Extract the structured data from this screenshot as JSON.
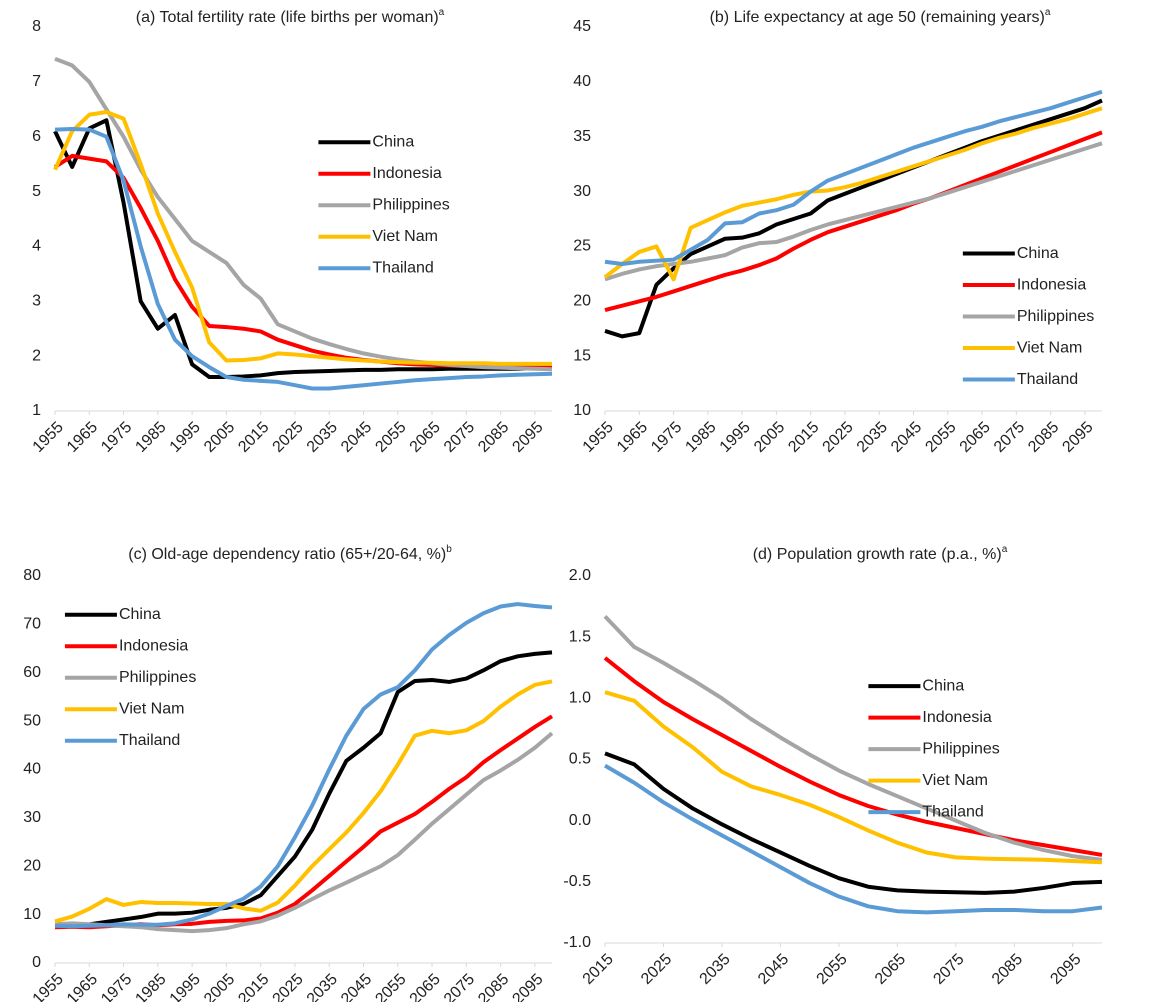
{
  "chart_data": [
    {
      "type": "line",
      "title": "(a) Total fertility rate (life births per woman)",
      "title_sup": "a",
      "x": [
        1955,
        1960,
        1965,
        1970,
        1975,
        1980,
        1985,
        1990,
        1995,
        2000,
        2005,
        2010,
        2015,
        2020,
        2025,
        2030,
        2035,
        2040,
        2045,
        2050,
        2055,
        2060,
        2065,
        2070,
        2075,
        2080,
        2085,
        2090,
        2095,
        2100
      ],
      "xlim": [
        1955,
        2100
      ],
      "xticks": [
        1955,
        1965,
        1975,
        1985,
        1995,
        2005,
        2015,
        2025,
        2035,
        2045,
        2055,
        2065,
        2075,
        2085,
        2095
      ],
      "ylim": [
        1,
        8
      ],
      "yticks": [
        1,
        2,
        3,
        4,
        5,
        6,
        7,
        8
      ],
      "legend": "upper right",
      "series": [
        {
          "name": "China",
          "color": "#000000",
          "values": [
            6.1,
            5.45,
            6.15,
            6.3,
            4.8,
            3.0,
            2.5,
            2.75,
            1.85,
            1.62,
            1.62,
            1.63,
            1.65,
            1.69,
            1.71,
            1.72,
            1.73,
            1.74,
            1.75,
            1.75,
            1.76,
            1.76,
            1.76,
            1.77,
            1.77,
            1.77,
            1.77,
            1.77,
            1.78,
            1.78
          ]
        },
        {
          "name": "Indonesia",
          "color": "#ff0000",
          "values": [
            5.45,
            5.65,
            5.6,
            5.55,
            5.25,
            4.7,
            4.1,
            3.4,
            2.9,
            2.55,
            2.53,
            2.5,
            2.45,
            2.3,
            2.2,
            2.1,
            2.03,
            1.97,
            1.93,
            1.9,
            1.87,
            1.85,
            1.84,
            1.83,
            1.82,
            1.81,
            1.8,
            1.8,
            1.79,
            1.79
          ]
        },
        {
          "name": "Philippines",
          "color": "#a5a5a5",
          "values": [
            7.42,
            7.3,
            7.0,
            6.5,
            6.0,
            5.4,
            4.9,
            4.5,
            4.1,
            3.9,
            3.7,
            3.3,
            3.05,
            2.58,
            2.45,
            2.32,
            2.22,
            2.13,
            2.05,
            1.99,
            1.94,
            1.9,
            1.87,
            1.84,
            1.82,
            1.8,
            1.79,
            1.78,
            1.77,
            1.76
          ]
        },
        {
          "name": "Viet Nam",
          "color": "#ffc000",
          "values": [
            5.4,
            6.1,
            6.4,
            6.45,
            6.33,
            5.5,
            4.6,
            3.9,
            3.25,
            2.25,
            1.92,
            1.93,
            1.96,
            2.05,
            2.03,
            2.0,
            1.97,
            1.94,
            1.92,
            1.9,
            1.89,
            1.88,
            1.88,
            1.87,
            1.87,
            1.87,
            1.86,
            1.86,
            1.86,
            1.86
          ]
        },
        {
          "name": "Thailand",
          "color": "#5b9bd5",
          "values": [
            6.13,
            6.14,
            6.13,
            6.0,
            5.2,
            4.0,
            2.95,
            2.3,
            2.0,
            1.8,
            1.62,
            1.57,
            1.55,
            1.53,
            1.47,
            1.41,
            1.41,
            1.44,
            1.47,
            1.5,
            1.53,
            1.56,
            1.58,
            1.6,
            1.62,
            1.63,
            1.65,
            1.66,
            1.67,
            1.68
          ]
        }
      ]
    },
    {
      "type": "line",
      "title": "(b) Life expectancy at age 50 (remaining years)",
      "title_sup": "a",
      "x": [
        1955,
        1960,
        1965,
        1970,
        1975,
        1980,
        1985,
        1990,
        1995,
        2000,
        2005,
        2010,
        2015,
        2020,
        2025,
        2030,
        2035,
        2040,
        2045,
        2050,
        2055,
        2060,
        2065,
        2070,
        2075,
        2080,
        2085,
        2090,
        2095,
        2100
      ],
      "xlim": [
        1955,
        2100
      ],
      "xticks": [
        1955,
        1965,
        1975,
        1985,
        1995,
        2005,
        2015,
        2025,
        2035,
        2045,
        2055,
        2065,
        2075,
        2085,
        2095
      ],
      "ylim": [
        10,
        45
      ],
      "yticks": [
        10,
        15,
        20,
        25,
        30,
        35,
        40,
        45
      ],
      "legend": "lower right",
      "series": [
        {
          "name": "China",
          "color": "#000000",
          "values": [
            17.3,
            16.8,
            17.1,
            21.5,
            23,
            24.3,
            25,
            25.7,
            25.8,
            26.2,
            27,
            27.5,
            28,
            29.2,
            29.8,
            30.4,
            31,
            31.6,
            32.2,
            32.8,
            33.4,
            34,
            34.6,
            35.1,
            35.6,
            36.1,
            36.6,
            37.1,
            37.6,
            38.3
          ]
        },
        {
          "name": "Indonesia",
          "color": "#ff0000",
          "values": [
            19.2,
            19.6,
            20,
            20.4,
            20.9,
            21.4,
            21.9,
            22.4,
            22.8,
            23.3,
            23.9,
            24.8,
            25.6,
            26.3,
            26.8,
            27.3,
            27.8,
            28.3,
            28.9,
            29.4,
            30,
            30.6,
            31.2,
            31.8,
            32.4,
            33,
            33.6,
            34.2,
            34.8,
            35.4
          ]
        },
        {
          "name": "Philippines",
          "color": "#a5a5a5",
          "values": [
            22,
            22.5,
            22.9,
            23.2,
            23.4,
            23.6,
            23.9,
            24.2,
            24.9,
            25.3,
            25.4,
            25.9,
            26.5,
            27,
            27.4,
            27.8,
            28.2,
            28.6,
            29,
            29.4,
            29.9,
            30.4,
            30.9,
            31.4,
            31.9,
            32.4,
            32.9,
            33.4,
            33.9,
            34.4
          ]
        },
        {
          "name": "Viet Nam",
          "color": "#ffc000",
          "values": [
            22.2,
            23.4,
            24.5,
            25,
            22,
            26.7,
            27.4,
            28.1,
            28.7,
            29,
            29.3,
            29.7,
            30,
            30.1,
            30.4,
            30.8,
            31.3,
            31.8,
            32.3,
            32.8,
            33.3,
            33.8,
            34.4,
            34.9,
            35.3,
            35.8,
            36.2,
            36.6,
            37.1,
            37.6
          ]
        },
        {
          "name": "Thailand",
          "color": "#5b9bd5",
          "values": [
            23.6,
            23.4,
            23.6,
            23.7,
            23.8,
            24.7,
            25.6,
            27.1,
            27.2,
            28,
            28.3,
            28.8,
            30,
            31,
            31.6,
            32.2,
            32.8,
            33.4,
            34,
            34.5,
            35,
            35.5,
            35.9,
            36.4,
            36.8,
            37.2,
            37.6,
            38.1,
            38.6,
            39.1
          ]
        }
      ]
    },
    {
      "type": "line",
      "title": "(c) Old-age dependency ratio (65+/20-64, %)",
      "title_sup": "b",
      "x": [
        1955,
        1960,
        1965,
        1970,
        1975,
        1980,
        1985,
        1990,
        1995,
        2000,
        2005,
        2010,
        2015,
        2020,
        2025,
        2030,
        2035,
        2040,
        2045,
        2050,
        2055,
        2060,
        2065,
        2070,
        2075,
        2080,
        2085,
        2090,
        2095,
        2100
      ],
      "xlim": [
        1955,
        2100
      ],
      "xticks": [
        1955,
        1965,
        1975,
        1985,
        1995,
        2005,
        2015,
        2025,
        2035,
        2045,
        2055,
        2065,
        2075,
        2085,
        2095
      ],
      "ylim": [
        0,
        80
      ],
      "yticks": [
        0,
        10,
        20,
        30,
        40,
        50,
        60,
        70,
        80
      ],
      "legend": "upper left",
      "series": [
        {
          "name": "China",
          "color": "#000000",
          "values": [
            7.5,
            7.6,
            8,
            8.5,
            9,
            9.5,
            10.2,
            10.2,
            10.4,
            11,
            11.4,
            12.2,
            14,
            18,
            22,
            27.5,
            35,
            41.8,
            44.5,
            47.5,
            56,
            58.3,
            58.5,
            58.1,
            58.8,
            60.5,
            62.4,
            63.4,
            63.9,
            64.2
          ]
        },
        {
          "name": "Indonesia",
          "color": "#ff0000",
          "values": [
            7.4,
            7.5,
            7.4,
            7.6,
            7.8,
            8,
            7.8,
            8,
            8.1,
            8.5,
            8.7,
            8.8,
            9.2,
            10.4,
            12.2,
            15,
            18,
            21,
            24,
            27.2,
            29,
            30.8,
            33.3,
            36,
            38.4,
            41.5,
            44,
            46.4,
            48.8,
            51
          ]
        },
        {
          "name": "Philippines",
          "color": "#a5a5a5",
          "values": [
            8,
            8.2,
            8,
            7.8,
            7.6,
            7.4,
            7,
            6.8,
            6.6,
            6.8,
            7.2,
            8,
            8.6,
            9.8,
            11.4,
            13.2,
            15,
            16.6,
            18.3,
            20,
            22.3,
            25.5,
            28.8,
            31.8,
            34.8,
            37.8,
            39.8,
            42,
            44.5,
            47.5
          ]
        },
        {
          "name": "Viet Nam",
          "color": "#ffc000",
          "values": [
            8.6,
            9.6,
            11.2,
            13.2,
            12,
            12.6,
            12.4,
            12.4,
            12.3,
            12.2,
            12.2,
            11.3,
            10.8,
            12.5,
            16,
            20,
            23.5,
            27,
            31,
            35.5,
            41,
            47,
            48,
            47.5,
            48.1,
            50,
            53,
            55.5,
            57.5,
            58.2
          ]
        },
        {
          "name": "Thailand",
          "color": "#5b9bd5",
          "values": [
            7.7,
            7.6,
            7.7,
            7.8,
            8,
            7.9,
            7.9,
            8.2,
            9,
            10.2,
            11.8,
            13.3,
            15.8,
            20,
            26,
            32.5,
            40,
            47,
            52.5,
            55.5,
            57,
            60.5,
            64.8,
            67.8,
            70.3,
            72.3,
            73.7,
            74.2,
            73.8,
            73.5
          ]
        }
      ]
    },
    {
      "type": "line",
      "title": "(d) Population growth rate (p.a., %)",
      "title_sup": "a",
      "x": [
        2015,
        2020,
        2025,
        2030,
        2035,
        2040,
        2045,
        2050,
        2055,
        2060,
        2065,
        2070,
        2075,
        2080,
        2085,
        2090,
        2095,
        2100
      ],
      "xlim": [
        2015,
        2100
      ],
      "xticks": [
        2015,
        2025,
        2035,
        2045,
        2055,
        2065,
        2075,
        2085,
        2095
      ],
      "ylim": [
        -1,
        2
      ],
      "yticks": [
        {
          "value": -1,
          "label": "-1.0"
        },
        -0.5,
        {
          "value": 0,
          "label": "0.0"
        },
        0.5,
        {
          "value": 1,
          "label": "1.0"
        },
        1.5,
        {
          "value": 2,
          "label": "2.0"
        }
      ],
      "legend": "upper right",
      "series": [
        {
          "name": "China",
          "color": "#000000",
          "values": [
            0.55,
            0.46,
            0.26,
            0.1,
            -0.03,
            -0.15,
            -0.26,
            -0.37,
            -0.47,
            -0.54,
            -0.57,
            -0.58,
            -0.585,
            -0.59,
            -0.58,
            -0.55,
            -0.51,
            -0.5
          ]
        },
        {
          "name": "Indonesia",
          "color": "#ff0000",
          "values": [
            1.33,
            1.14,
            0.97,
            0.83,
            0.7,
            0.57,
            0.44,
            0.32,
            0.21,
            0.12,
            0.05,
            -0.01,
            -0.06,
            -0.11,
            -0.16,
            -0.2,
            -0.24,
            -0.28
          ]
        },
        {
          "name": "Philippines",
          "color": "#a5a5a5",
          "values": [
            1.67,
            1.42,
            1.29,
            1.15,
            1.0,
            0.83,
            0.68,
            0.54,
            0.41,
            0.3,
            0.2,
            0.1,
            0.0,
            -0.1,
            -0.18,
            -0.24,
            -0.29,
            -0.32
          ]
        },
        {
          "name": "Viet Nam",
          "color": "#ffc000",
          "values": [
            1.05,
            0.98,
            0.77,
            0.6,
            0.4,
            0.28,
            0.21,
            0.13,
            0.03,
            -0.08,
            -0.18,
            -0.26,
            -0.3,
            -0.31,
            -0.315,
            -0.32,
            -0.33,
            -0.34
          ]
        },
        {
          "name": "Thailand",
          "color": "#5b9bd5",
          "values": [
            0.45,
            0.31,
            0.15,
            0.01,
            -0.12,
            -0.25,
            -0.38,
            -0.51,
            -0.62,
            -0.7,
            -0.74,
            -0.75,
            -0.74,
            -0.73,
            -0.73,
            -0.74,
            -0.74,
            -0.71
          ]
        }
      ]
    }
  ]
}
